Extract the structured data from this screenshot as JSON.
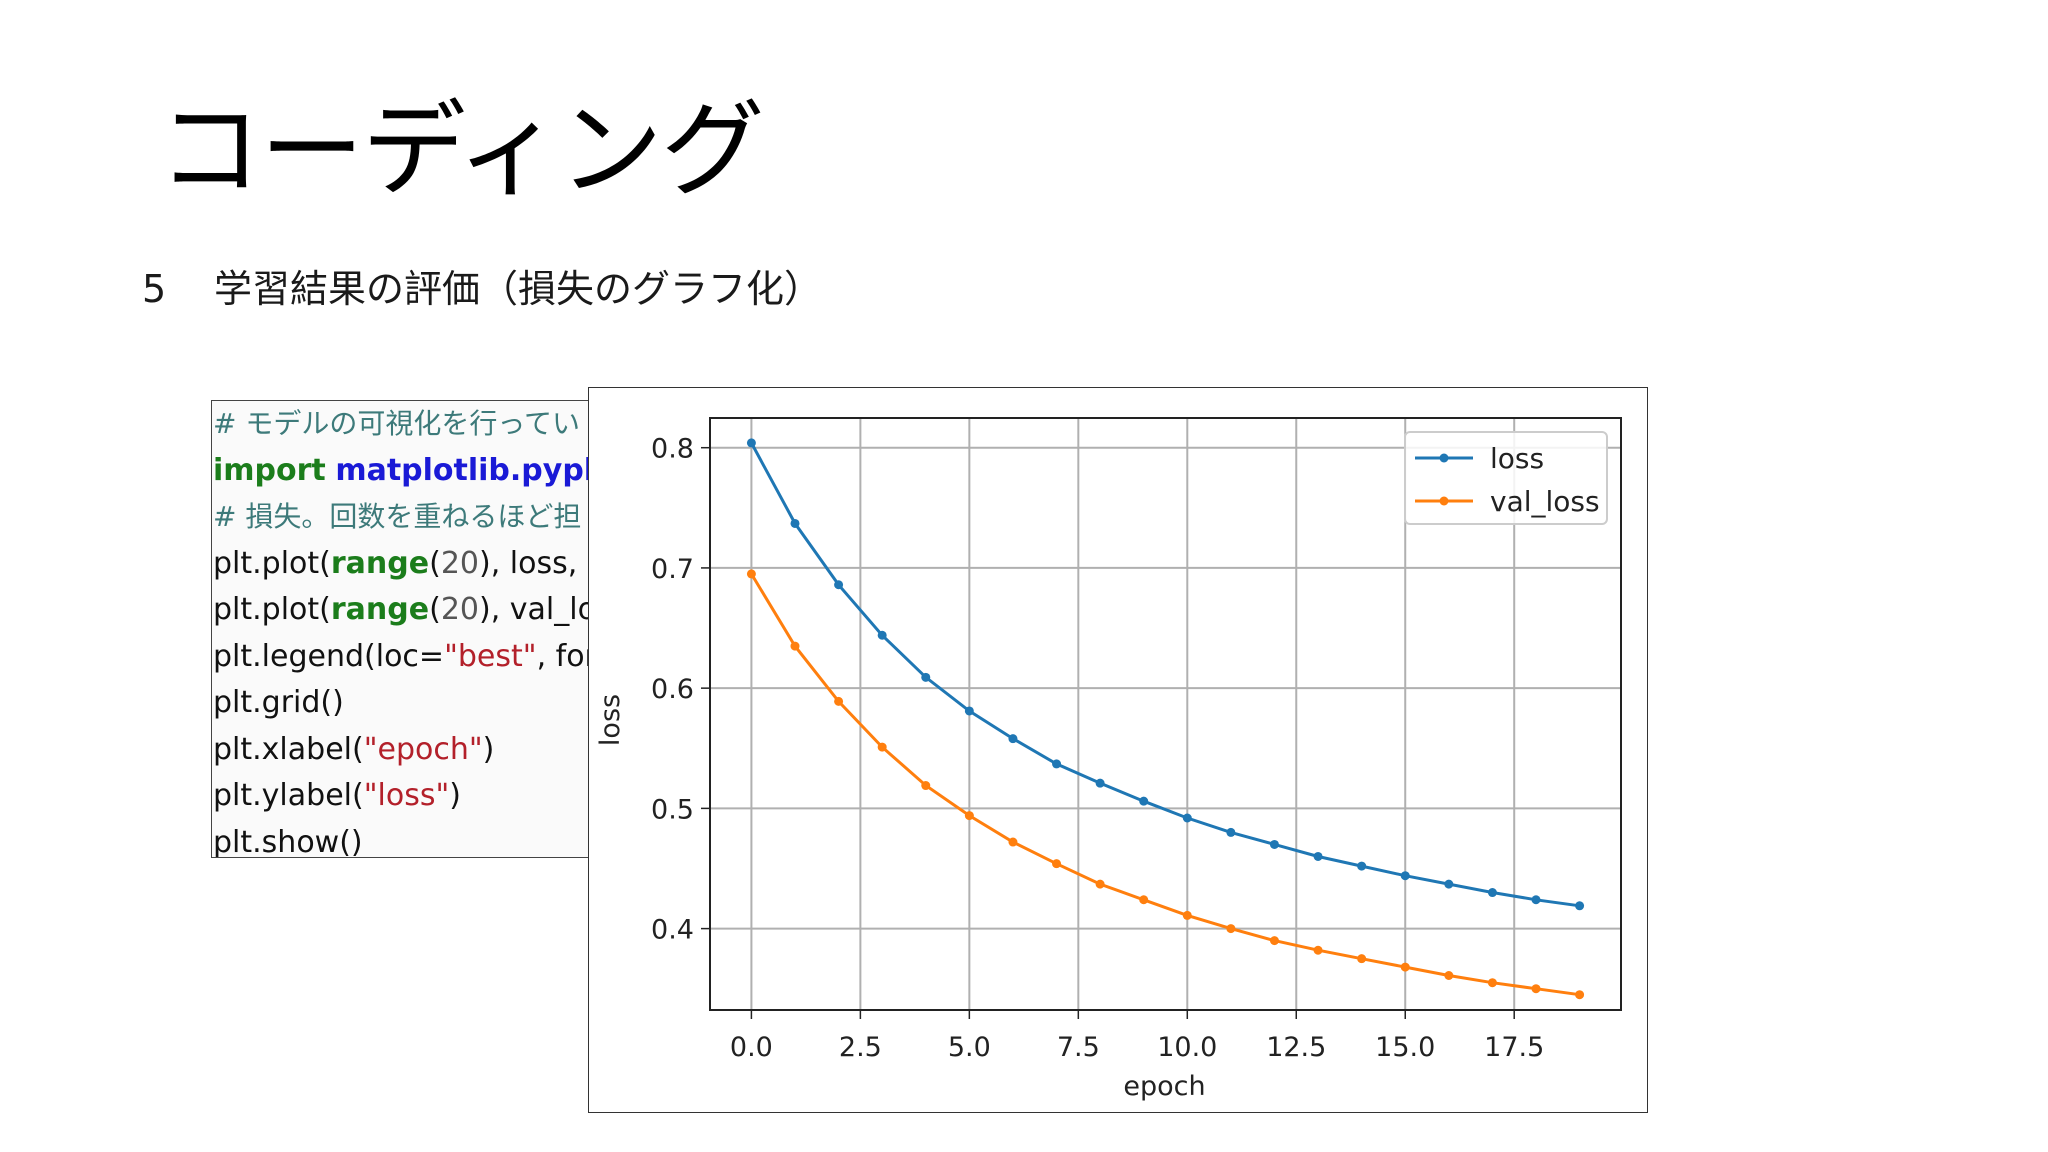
{
  "slide": {
    "title": "コーディング",
    "section_number": "5",
    "section_title": "学習結果の評価（損失のグラフ化）"
  },
  "code": {
    "line1": "# モデルの可視化を行ってい",
    "line2_kw": "import",
    "line2_mod": "matplotlib.pyplo",
    "line3": "# 損失。回数を重ねるほど担",
    "line4_a": "plt.plot(",
    "line4_kw": "range",
    "line4_b": "(",
    "line4_num": "20",
    "line4_c": "), loss, r",
    "line5_a": "plt.plot(",
    "line5_kw": "range",
    "line5_b": "(",
    "line5_num": "20",
    "line5_c": "), val_lo",
    "line6_a": "plt.legend(loc=",
    "line6_str": "\"best\"",
    "line6_b": ", font",
    "line7": "plt.grid()",
    "line8_a": "plt.xlabel(",
    "line8_str": "\"epoch\"",
    "line8_b": ")",
    "line9_a": "plt.ylabel(",
    "line9_str": "\"loss\"",
    "line9_b": ")",
    "line10": "plt.show()"
  },
  "chart_data": {
    "type": "line",
    "xlabel": "epoch",
    "ylabel": "loss",
    "xlim": [
      -0.95,
      19.95
    ],
    "ylim": [
      0.3323,
      0.8247
    ],
    "xticks": [
      0,
      2.5,
      5,
      7.5,
      10,
      12.5,
      15,
      17.5
    ],
    "xtick_labels": [
      "0.0",
      "2.5",
      "5.0",
      "7.5",
      "10.0",
      "12.5",
      "15.0",
      "17.5"
    ],
    "yticks": [
      0.4,
      0.5,
      0.6,
      0.7,
      0.8
    ],
    "ytick_labels": [
      "0.4",
      "0.5",
      "0.6",
      "0.7",
      "0.8"
    ],
    "grid": true,
    "legend_position": "top-right",
    "x": [
      0,
      1,
      2,
      3,
      4,
      5,
      6,
      7,
      8,
      9,
      10,
      11,
      12,
      13,
      14,
      15,
      16,
      17,
      18,
      19
    ],
    "series": [
      {
        "name": "loss",
        "color": "#1f77b4",
        "values": [
          0.804,
          0.737,
          0.686,
          0.644,
          0.609,
          0.581,
          0.558,
          0.537,
          0.521,
          0.506,
          0.492,
          0.48,
          0.47,
          0.46,
          0.452,
          0.444,
          0.437,
          0.43,
          0.424,
          0.419
        ]
      },
      {
        "name": "val_loss",
        "color": "#ff7f0e",
        "values": [
          0.695,
          0.635,
          0.589,
          0.551,
          0.519,
          0.494,
          0.472,
          0.454,
          0.437,
          0.424,
          0.411,
          0.4,
          0.39,
          0.382,
          0.375,
          0.368,
          0.361,
          0.355,
          0.35,
          0.345
        ]
      }
    ]
  }
}
